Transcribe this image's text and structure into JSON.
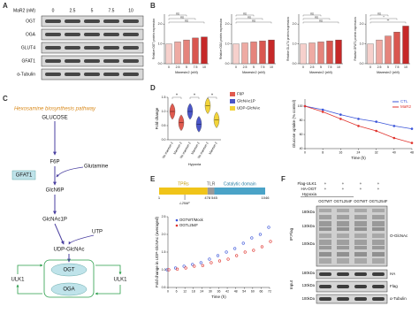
{
  "panels": {
    "A": {
      "label": "A",
      "header": "MaR2 (nM)",
      "lanes": [
        0,
        2.5,
        5,
        7.5,
        10
      ],
      "rows": [
        "OGT",
        "OGA",
        "GLUT4",
        "GFAT1",
        "α-Tubulin"
      ]
    },
    "B": {
      "label": "B"
    },
    "C": {
      "label": "C",
      "title": "Hexosamine biosynthesis pathway",
      "nodes": [
        "GLUCOSE",
        "F6P",
        "Glutamine",
        "GFAT1",
        "GlcN6P",
        "GlcNAc1P",
        "UTP",
        "UDP-GlcNAc",
        "OGT",
        "OGA",
        "ULK1",
        "ULK1"
      ]
    },
    "D": {
      "label": "D"
    },
    "E": {
      "label": "E",
      "domains": [
        "TPRs",
        "TLR",
        "Catalytic domain"
      ],
      "positions": [
        1,
        478,
        545,
        1046
      ],
      "mutation": "L254F",
      "mutation_position": 254
    },
    "F": {
      "label": "F",
      "rows": [
        "Flag-ULK1",
        "HA-OGT"
      ],
      "row_signs": [
        [
          "+",
          "+",
          "+",
          "+"
        ],
        [
          "+",
          "+",
          "+",
          "+"
        ]
      ],
      "condition": "Hypoxia",
      "groups": [
        "OGTWT",
        "OGTL254F",
        "OGTWT",
        "OGTL254F"
      ],
      "markers_ip": [
        "180kDa",
        "130kDa",
        "100kDa"
      ],
      "markers_input": [
        "180kDa",
        "130kDa",
        "100kDa"
      ],
      "side_labels": [
        "IP:Flag",
        "Input"
      ],
      "bands": [
        "O-GlcNAc",
        "HA",
        "Flag",
        "α-Tubulin"
      ]
    }
  },
  "chart_data": [
    {
      "type": "bar",
      "ylabel": "Relative OGT protein expression",
      "xlabel": "Maresin2 (nM)",
      "categories": [
        "0",
        "2.5",
        "5",
        "7.5",
        "10"
      ],
      "values": [
        1.0,
        1.1,
        1.2,
        1.3,
        1.35
      ],
      "colors": [
        "#f6d0cc",
        "#eeaaa3",
        "#e5847c",
        "#d95750",
        "#c62828"
      ],
      "ylim": [
        0,
        2.5
      ],
      "yticks": [
        {
          "value": 0,
          "label": "0.0"
        },
        {
          "value": 1,
          "label": "1.0"
        },
        {
          "value": 2,
          "label": "2.0"
        }
      ],
      "annotations": [
        "ns",
        "ns",
        "ns"
      ]
    },
    {
      "type": "bar",
      "ylabel": "Relative OGA protein expression",
      "xlabel": "Maresin2 (nM)",
      "categories": [
        "0",
        "2.5",
        "5",
        "7.5",
        "10"
      ],
      "values": [
        1.0,
        1.05,
        1.1,
        1.15,
        1.2
      ],
      "colors": [
        "#f6d0cc",
        "#eeaaa3",
        "#e5847c",
        "#d95750",
        "#c62828"
      ],
      "ylim": [
        0,
        2.5
      ],
      "yticks": [
        {
          "value": 0,
          "label": "0.0"
        },
        {
          "value": 1,
          "label": "1.0"
        },
        {
          "value": 2,
          "label": "2.0"
        }
      ],
      "annotations": [
        "ns",
        "ns",
        "ns"
      ]
    },
    {
      "type": "bar",
      "ylabel": "Relative GLUT4 protein expression",
      "xlabel": "Maresin2 (nM)",
      "categories": [
        "0",
        "2.5",
        "5",
        "7.5",
        "10"
      ],
      "values": [
        1.0,
        1.05,
        1.1,
        1.15,
        1.2
      ],
      "colors": [
        "#f6d0cc",
        "#eeaaa3",
        "#e5847c",
        "#d95750",
        "#c62828"
      ],
      "ylim": [
        0,
        2.5
      ],
      "yticks": [
        {
          "value": 0,
          "label": "0.0"
        },
        {
          "value": 1,
          "label": "1.0"
        },
        {
          "value": 2,
          "label": "2.0"
        }
      ],
      "annotations": [
        "ns",
        "ns",
        "ns"
      ]
    },
    {
      "type": "bar",
      "ylabel": "Relative GFAT1 protein expression",
      "xlabel": "Maresin2 (nM)",
      "categories": [
        "0",
        "2.5",
        "5",
        "7.5",
        "10"
      ],
      "values": [
        1.0,
        1.2,
        1.4,
        1.6,
        1.9
      ],
      "colors": [
        "#f6d0cc",
        "#eeaaa3",
        "#e5847c",
        "#d95750",
        "#c62828"
      ],
      "ylim": [
        0,
        2.5
      ],
      "yticks": [
        {
          "value": 0,
          "label": "0.0"
        },
        {
          "value": 1,
          "label": "1.0"
        },
        {
          "value": 2,
          "label": "2.0"
        }
      ],
      "annotations": [
        "ns",
        "*",
        "**"
      ]
    },
    {
      "type": "violin",
      "ylabel": "Fold change",
      "group_label": "Hypoxia",
      "categories": [
        "No maresin 2",
        "Maresin 2",
        "No maresin 2",
        "Maresin 2",
        "No maresin 2",
        "Maresin 2"
      ],
      "series": [
        {
          "name": "F6P",
          "color": "#e05a4f",
          "values": [
            1.0,
            0.6,
            null,
            null,
            null,
            null
          ]
        },
        {
          "name": "GlcNAc1P",
          "color": "#4a56c8",
          "values": [
            null,
            null,
            1.0,
            0.55,
            null,
            null
          ]
        },
        {
          "name": "UDP-GlcNAc",
          "color": "#f2d43a",
          "values": [
            null,
            null,
            null,
            null,
            1.2,
            0.7
          ]
        }
      ],
      "ylim": [
        0,
        1.5
      ],
      "yticks": [
        {
          "value": 0,
          "label": "0.0"
        },
        {
          "value": 0.5,
          "label": "0.5"
        },
        {
          "value": 1,
          "label": "1.0"
        },
        {
          "value": 1.5,
          "label": "1.5"
        }
      ],
      "annotations": [
        "*",
        "*",
        "*"
      ]
    },
    {
      "type": "line",
      "ylabel": "Glucose uptake (% control)",
      "xlabel": "Time (h)",
      "x": [
        0,
        8,
        16,
        24,
        32,
        40,
        48
      ],
      "series": [
        {
          "name": "CTL",
          "color": "#3b55d9",
          "values": [
            100,
            95,
            88,
            82,
            78,
            72,
            68
          ]
        },
        {
          "name": "MaR2",
          "color": "#e0332d",
          "values": [
            100,
            92,
            82,
            72,
            65,
            55,
            48
          ]
        }
      ],
      "xlim": [
        0,
        48
      ],
      "xticks": [
        0,
        8,
        16,
        24,
        32,
        40,
        48
      ],
      "ylim": [
        40,
        110
      ],
      "yticks": [
        40,
        60,
        80,
        100
      ]
    },
    {
      "type": "scatter",
      "ylabel": "Fold change in UDP-GlcNAc (averaged)",
      "xlabel": "Time (h)",
      "x": [
        0,
        6,
        12,
        18,
        24,
        30,
        36,
        42,
        48,
        54,
        60,
        66,
        72
      ],
      "series": [
        {
          "name": "OGTWT/Mock",
          "color": "#3b55d9",
          "values": [
            1.0,
            1.05,
            1.1,
            1.15,
            1.2,
            1.3,
            1.4,
            1.5,
            1.6,
            1.75,
            1.9,
            2.0,
            2.2
          ]
        },
        {
          "name": "OGTL254F",
          "color": "#e0332d",
          "values": [
            1.0,
            1.02,
            1.05,
            1.1,
            1.12,
            1.2,
            1.25,
            1.3,
            1.4,
            1.5,
            1.55,
            1.65,
            1.8
          ]
        }
      ],
      "xlim": [
        0,
        72
      ],
      "xticks": [
        0,
        6,
        12,
        18,
        24,
        30,
        36,
        42,
        48,
        54,
        60,
        66,
        72
      ],
      "ylim": [
        0.5,
        2.5
      ],
      "yticks": [
        {
          "value": 0.5,
          "label": "0.5"
        },
        {
          "value": 1,
          "label": "1.0"
        },
        {
          "value": 1.5,
          "label": "1.5"
        },
        {
          "value": 2,
          "label": "2.0"
        },
        {
          "value": 2.5,
          "label": "2.5"
        }
      ]
    }
  ]
}
